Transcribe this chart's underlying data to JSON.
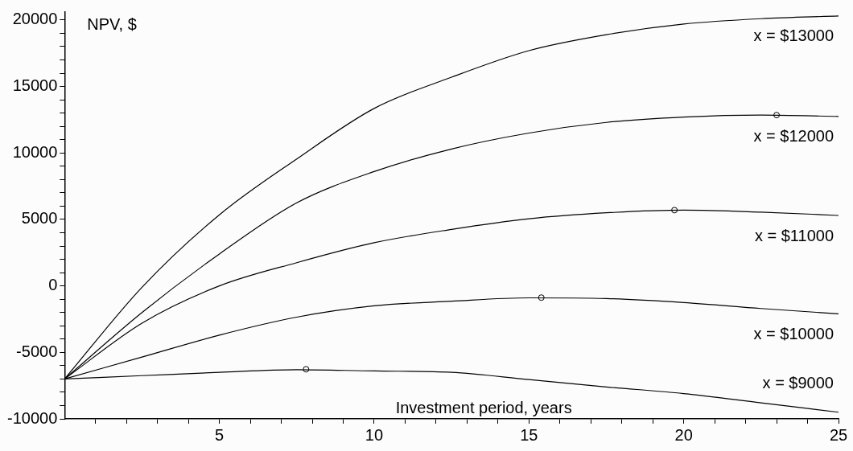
{
  "chart_data": {
    "type": "line",
    "xlabel": "Investment period, years",
    "ylabel": "NPV, $",
    "xlim": [
      0,
      25
    ],
    "ylim": [
      -10000,
      20600
    ],
    "xticks": [
      {
        "value": 1,
        "label": null
      },
      {
        "value": 2,
        "label": null
      },
      {
        "value": 3,
        "label": null
      },
      {
        "value": 4,
        "label": null
      },
      5,
      {
        "value": 6,
        "label": null
      },
      {
        "value": 7,
        "label": null
      },
      {
        "value": 8,
        "label": null
      },
      {
        "value": 9,
        "label": null
      },
      10,
      {
        "value": 11,
        "label": null
      },
      {
        "value": 12,
        "label": null
      },
      {
        "value": 13,
        "label": null
      },
      {
        "value": 14,
        "label": null
      },
      15,
      {
        "value": 16,
        "label": null
      },
      {
        "value": 17,
        "label": null
      },
      {
        "value": 18,
        "label": null
      },
      {
        "value": 19,
        "label": null
      },
      20,
      {
        "value": 21,
        "label": null
      },
      {
        "value": 22,
        "label": null
      },
      {
        "value": 23,
        "label": null
      },
      {
        "value": 24,
        "label": null
      },
      25
    ],
    "yticks": [
      -10000,
      {
        "value": -9000,
        "label": null
      },
      {
        "value": -8000,
        "label": null
      },
      {
        "value": -7000,
        "label": null
      },
      {
        "value": -6000,
        "label": null
      },
      -5000,
      {
        "value": -4000,
        "label": null
      },
      {
        "value": -3000,
        "label": null
      },
      {
        "value": -2000,
        "label": null
      },
      {
        "value": -1000,
        "label": null
      },
      0,
      {
        "value": 1000,
        "label": null
      },
      {
        "value": 2000,
        "label": null
      },
      {
        "value": 3000,
        "label": null
      },
      {
        "value": 4000,
        "label": null
      },
      5000,
      {
        "value": 6000,
        "label": null
      },
      {
        "value": 7000,
        "label": null
      },
      {
        "value": 8000,
        "label": null
      },
      {
        "value": 9000,
        "label": null
      },
      10000,
      {
        "value": 11000,
        "label": null
      },
      {
        "value": 12000,
        "label": null
      },
      {
        "value": 13000,
        "label": null
      },
      {
        "value": 14000,
        "label": null
      },
      15000,
      {
        "value": 16000,
        "label": null
      },
      {
        "value": 17000,
        "label": null
      },
      {
        "value": 18000,
        "label": null
      },
      {
        "value": 19000,
        "label": null
      },
      20000
    ],
    "grid": false,
    "legend": false,
    "marker": "none",
    "line_style": "solid",
    "x": [
      0,
      2.5,
      5,
      7.5,
      10,
      12.5,
      15,
      17.5,
      20,
      22.5,
      25
    ],
    "series": [
      {
        "name": "x = $13000",
        "color": "#000000",
        "values": [
          -7000,
          -100,
          5350,
          9550,
          13350,
          15700,
          17700,
          18900,
          19700,
          20100,
          20300
        ]
      },
      {
        "name": "x = $12000",
        "color": "#000000",
        "values": [
          -7000,
          -2000,
          2400,
          6250,
          8600,
          10300,
          11500,
          12300,
          12700,
          12850,
          12750
        ]
      },
      {
        "name": "x = $11000",
        "color": "#000000",
        "values": [
          -7000,
          -2800,
          0,
          1750,
          3250,
          4250,
          5050,
          5500,
          5700,
          5550,
          5300
        ]
      },
      {
        "name": "x = $10000",
        "color": "#000000",
        "values": [
          -7000,
          -5350,
          -3700,
          -2350,
          -1500,
          -1150,
          -900,
          -950,
          -1250,
          -1700,
          -2100
        ]
      },
      {
        "name": "x = $9000",
        "color": "#000000",
        "values": [
          -7000,
          -6750,
          -6500,
          -6300,
          -6400,
          -6500,
          -7050,
          -7600,
          -8100,
          -8800,
          -9500
        ]
      },
      {
        "type": "scatter",
        "marker": "circle",
        "color": "#000000",
        "x": [
          7.8,
          15.4,
          19.7,
          23
        ],
        "values": [
          -6270,
          -880,
          5700,
          12850
        ]
      }
    ]
  }
}
